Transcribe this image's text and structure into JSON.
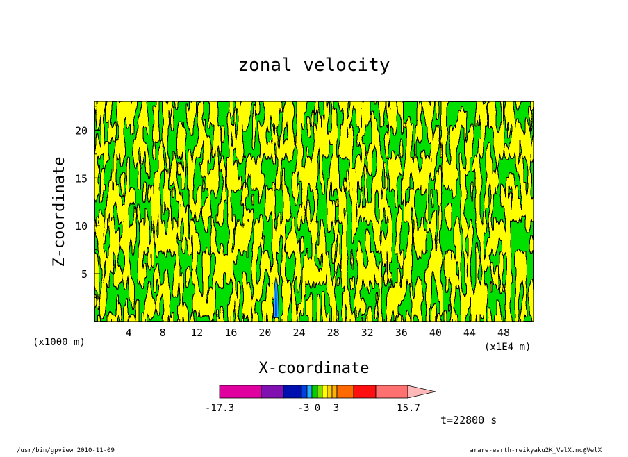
{
  "chart_data": {
    "type": "heatmap",
    "title": "zonal velocity",
    "xlabel": "X-coordinate",
    "ylabel": "Z-coordinate",
    "x_unit_left": "(x1000 m)",
    "x_unit_right": "(x1E4 m)",
    "xlim": [
      0,
      51.5
    ],
    "ylim": [
      0,
      23
    ],
    "x_ticks": [
      "4",
      "8",
      "12",
      "16",
      "20",
      "24",
      "28",
      "32",
      "36",
      "40",
      "44",
      "48"
    ],
    "y_ticks": [
      "5",
      "10",
      "15",
      "20"
    ],
    "time_label": "t=22800 s",
    "colorbar": {
      "min_label": "-17.3",
      "max_label": "15.7",
      "tick_labels": [
        "-3",
        "0",
        "3"
      ],
      "colors": [
        "#e000a0",
        "#8010b0",
        "#0010b0",
        "#0040e0",
        "#20b0ff",
        "#00d000",
        "#80e000",
        "#ffff00",
        "#ffd000",
        "#ffb000",
        "#ff6a00",
        "#ff1010",
        "#ff7070",
        "#ffb8b8"
      ],
      "field_colors": {
        "negative_small": "#00e000",
        "positive_small": "#ffff00",
        "contour": "#000000"
      }
    },
    "plume": {
      "x": 21.3,
      "z_top": 4.7,
      "colors": [
        "#20b0ff",
        "#0040e0"
      ]
    }
  },
  "footer": {
    "left": "/usr/bin/gpview   2010-11-09",
    "right": "arare-earth-reikyaku2K_VelX.nc@VelX"
  }
}
